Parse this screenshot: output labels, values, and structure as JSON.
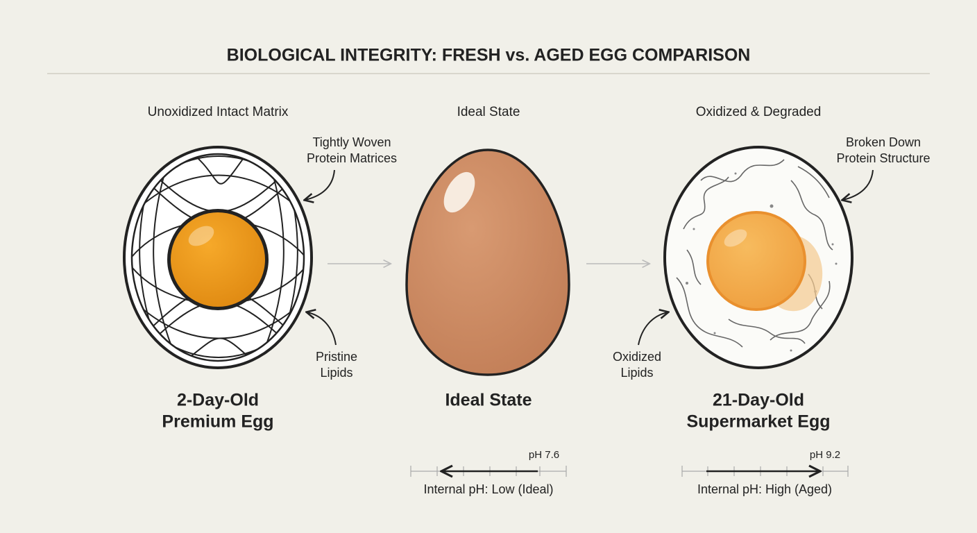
{
  "header": {
    "title": "BIOLOGICAL INTEGRITY: FRESH vs. AGED EGG COMPARISON"
  },
  "panels": [
    {
      "heading": "Unoxidized Intact Matrix",
      "annotations": [
        {
          "lines": [
            "Tightly Woven",
            "Protein Matrices"
          ]
        },
        {
          "lines": [
            "Pristine",
            "Lipids"
          ]
        }
      ],
      "name": [
        "2-Day-Old",
        "Premium Egg"
      ]
    },
    {
      "heading": "Ideal State",
      "name": [
        "Ideal State"
      ],
      "ph": {
        "marker": "pH 7.6",
        "label": "Internal pH: Low (Ideal)"
      }
    },
    {
      "heading": "Oxidized & Degraded",
      "annotations": [
        {
          "lines": [
            "Broken Down",
            "Protein Structure"
          ]
        },
        {
          "lines": [
            "Oxidized",
            "Lipids"
          ]
        }
      ],
      "name": [
        "21-Day-Old",
        "Supermarket Egg"
      ],
      "ph": {
        "marker": "pH 9.2",
        "label": "Internal pH: High (Aged)"
      }
    }
  ]
}
